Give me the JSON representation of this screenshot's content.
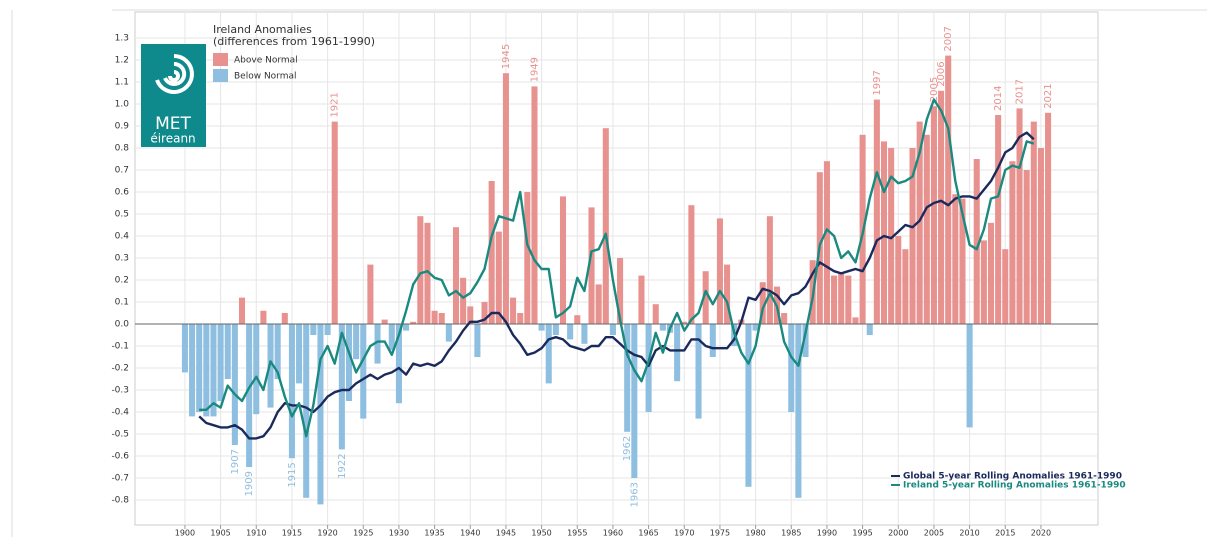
{
  "chart_data": {
    "type": "bar",
    "legend_title": "Ireland Anomalies",
    "legend_subtitle": "(differences from 1961-1990)",
    "logo": {
      "line1": "MET",
      "line2": "éireann"
    },
    "x": [
      1900,
      1901,
      1902,
      1903,
      1904,
      1905,
      1906,
      1907,
      1908,
      1909,
      1910,
      1911,
      1912,
      1913,
      1914,
      1915,
      1916,
      1917,
      1918,
      1919,
      1920,
      1921,
      1922,
      1923,
      1924,
      1925,
      1926,
      1927,
      1928,
      1929,
      1930,
      1931,
      1932,
      1933,
      1934,
      1935,
      1936,
      1937,
      1938,
      1939,
      1940,
      1941,
      1942,
      1943,
      1944,
      1945,
      1946,
      1947,
      1948,
      1949,
      1950,
      1951,
      1952,
      1953,
      1954,
      1955,
      1956,
      1957,
      1958,
      1959,
      1960,
      1961,
      1962,
      1963,
      1964,
      1965,
      1966,
      1967,
      1968,
      1969,
      1970,
      1971,
      1972,
      1973,
      1974,
      1975,
      1976,
      1977,
      1978,
      1979,
      1980,
      1981,
      1982,
      1983,
      1984,
      1985,
      1986,
      1987,
      1988,
      1989,
      1990,
      1991,
      1992,
      1993,
      1994,
      1995,
      1996,
      1997,
      1998,
      1999,
      2000,
      2001,
      2002,
      2003,
      2004,
      2005,
      2006,
      2007,
      2008,
      2009,
      2010,
      2011,
      2012,
      2013,
      2014,
      2015,
      2016,
      2017,
      2018,
      2019,
      2020,
      2021
    ],
    "bars": {
      "positive": {
        "name": "Above Normal",
        "color": "#e8928f"
      },
      "negative": {
        "name": "Below Normal",
        "color": "#8fbfe0"
      },
      "values": [
        -0.22,
        -0.42,
        -0.4,
        -0.42,
        -0.42,
        -0.35,
        -0.25,
        -0.55,
        0.12,
        -0.65,
        -0.41,
        0.06,
        -0.38,
        -0.25,
        0.05,
        -0.61,
        -0.27,
        -0.79,
        -0.05,
        -0.82,
        -0.05,
        0.92,
        -0.57,
        -0.35,
        -0.16,
        -0.43,
        0.27,
        -0.18,
        0.02,
        -0.12,
        -0.36,
        -0.03,
        0.01,
        0.49,
        0.46,
        0.06,
        0.05,
        -0.08,
        0.44,
        0.21,
        0.08,
        -0.15,
        0.1,
        0.65,
        0.42,
        1.14,
        0.12,
        0.05,
        0.6,
        1.08,
        -0.03,
        -0.27,
        -0.05,
        0.58,
        -0.07,
        0.04,
        -0.09,
        0.53,
        0.18,
        0.89,
        -0.05,
        0.3,
        -0.49,
        -0.7,
        0.22,
        -0.4,
        0.09,
        -0.03,
        -0.04,
        -0.26,
        0.01,
        0.54,
        -0.43,
        0.24,
        -0.15,
        0.48,
        0.27,
        -0.1,
        0.02,
        -0.74,
        -0.03,
        0.19,
        0.49,
        0.17,
        0.05,
        -0.4,
        -0.79,
        -0.15,
        0.29,
        0.69,
        0.74,
        0.22,
        0.23,
        0.22,
        0.03,
        0.86,
        -0.05,
        1.02,
        0.83,
        0.8,
        0.4,
        0.34,
        0.8,
        0.92,
        0.86,
        0.99,
        1.06,
        1.22,
        0.59,
        0.57,
        -0.47,
        0.75,
        0.38,
        0.46,
        0.95,
        0.34,
        0.74,
        0.98,
        0.7,
        0.92,
        0.8,
        0.96
      ],
      "value_labels": [
        null,
        null,
        null,
        null,
        null,
        null,
        null,
        "1907",
        null,
        "1909",
        null,
        null,
        null,
        null,
        null,
        "1915",
        null,
        null,
        null,
        null,
        null,
        "1921",
        "1922",
        null,
        null,
        null,
        null,
        null,
        null,
        null,
        null,
        null,
        null,
        null,
        null,
        null,
        null,
        null,
        null,
        null,
        null,
        null,
        null,
        null,
        null,
        "1945",
        null,
        null,
        null,
        "1949",
        null,
        null,
        null,
        null,
        null,
        null,
        null,
        null,
        null,
        null,
        null,
        null,
        "1962",
        "1963",
        null,
        null,
        null,
        null,
        null,
        null,
        null,
        null,
        null,
        null,
        null,
        null,
        null,
        null,
        null,
        null,
        null,
        null,
        null,
        null,
        null,
        null,
        null,
        null,
        null,
        null,
        null,
        null,
        null,
        null,
        null,
        null,
        null,
        "1997",
        null,
        null,
        null,
        null,
        null,
        null,
        null,
        "2005",
        "2006",
        "2007",
        null,
        null,
        null,
        null,
        null,
        null,
        "2014",
        null,
        null,
        "2017",
        null,
        null,
        null,
        "2021"
      ]
    },
    "series": [
      {
        "name": "Global 5-year Rolling Anomalies 1961-1990",
        "color": "#1b2a5c",
        "type": "line",
        "values": [
          null,
          null,
          -0.42,
          -0.45,
          -0.46,
          -0.47,
          -0.47,
          -0.46,
          -0.48,
          -0.52,
          -0.52,
          -0.51,
          -0.47,
          -0.4,
          -0.36,
          -0.37,
          -0.37,
          -0.38,
          -0.4,
          -0.37,
          -0.33,
          -0.31,
          -0.3,
          -0.3,
          -0.27,
          -0.25,
          -0.23,
          -0.25,
          -0.23,
          -0.22,
          -0.2,
          -0.23,
          -0.18,
          -0.19,
          -0.18,
          -0.19,
          -0.17,
          -0.12,
          -0.08,
          -0.03,
          0.01,
          0.01,
          0.02,
          0.05,
          0.05,
          0.01,
          -0.05,
          -0.09,
          -0.14,
          -0.13,
          -0.11,
          -0.07,
          -0.06,
          -0.07,
          -0.1,
          -0.11,
          -0.12,
          -0.1,
          -0.1,
          -0.06,
          -0.06,
          -0.09,
          -0.12,
          -0.14,
          -0.15,
          -0.19,
          -0.12,
          -0.1,
          -0.12,
          -0.12,
          -0.12,
          -0.07,
          -0.07,
          -0.1,
          -0.11,
          -0.11,
          -0.11,
          -0.07,
          0.01,
          0.12,
          0.11,
          0.16,
          0.15,
          0.13,
          0.09,
          0.13,
          0.14,
          0.17,
          0.23,
          0.28,
          0.26,
          0.24,
          0.23,
          0.24,
          0.25,
          0.24,
          0.3,
          0.38,
          0.4,
          0.39,
          0.42,
          0.45,
          0.44,
          0.47,
          0.53,
          0.55,
          0.56,
          0.54,
          0.57,
          0.58,
          0.58,
          0.57,
          0.61,
          0.65,
          0.71,
          0.78,
          0.8,
          0.85,
          0.87,
          0.84,
          null,
          null
        ]
      },
      {
        "name": "Ireland 5-year Rolling Anomalies 1961-1990",
        "color": "#1a8a80",
        "type": "line",
        "values": [
          null,
          null,
          -0.39,
          -0.39,
          -0.36,
          -0.38,
          -0.28,
          -0.32,
          -0.35,
          -0.29,
          -0.24,
          -0.3,
          -0.17,
          -0.22,
          -0.33,
          -0.42,
          -0.36,
          -0.51,
          -0.37,
          -0.16,
          -0.1,
          -0.18,
          -0.04,
          -0.13,
          -0.22,
          -0.16,
          -0.1,
          -0.08,
          -0.08,
          -0.14,
          -0.05,
          0.06,
          0.18,
          0.23,
          0.24,
          0.21,
          0.2,
          0.13,
          0.15,
          0.12,
          0.14,
          0.19,
          0.25,
          0.4,
          0.49,
          0.48,
          0.47,
          0.6,
          0.36,
          0.29,
          0.25,
          0.25,
          0.03,
          0.05,
          0.08,
          0.21,
          0.15,
          0.33,
          0.34,
          0.41,
          0.2,
          0.02,
          -0.14,
          -0.21,
          -0.26,
          -0.17,
          -0.04,
          -0.13,
          -0.02,
          0.05,
          -0.03,
          0.02,
          0.05,
          0.15,
          0.09,
          0.15,
          0.1,
          -0.04,
          -0.13,
          -0.18,
          -0.1,
          0.07,
          0.14,
          0.08,
          -0.08,
          -0.15,
          -0.19,
          -0.04,
          0.12,
          0.36,
          0.43,
          0.4,
          0.3,
          0.33,
          0.28,
          0.41,
          0.57,
          0.69,
          0.6,
          0.67,
          0.64,
          0.65,
          0.67,
          0.78,
          0.93,
          1.02,
          0.97,
          0.89,
          0.65,
          0.5,
          0.36,
          0.34,
          0.43,
          0.57,
          0.58,
          0.7,
          0.72,
          0.71,
          0.83,
          0.82,
          null,
          null
        ]
      }
    ],
    "xlim": [
      1893,
      2028
    ],
    "ylim": [
      -0.9,
      1.4
    ],
    "xticks": [
      1900,
      1905,
      1910,
      1915,
      1920,
      1925,
      1930,
      1935,
      1940,
      1945,
      1950,
      1955,
      1960,
      1965,
      1970,
      1975,
      1980,
      1985,
      1990,
      1995,
      2000,
      2005,
      2010,
      2015,
      2020
    ],
    "yticks": [
      -0.8,
      -0.7,
      -0.6,
      -0.5,
      -0.4,
      -0.3,
      -0.2,
      -0.1,
      {
        "value": 0,
        "label": "0.0"
      },
      0.1,
      0.2,
      0.3,
      0.4,
      0.5,
      0.6,
      0.7,
      0.8,
      0.9,
      {
        "value": 1,
        "label": "1.0"
      },
      1.1,
      1.2,
      1.3
    ],
    "grid": true
  }
}
